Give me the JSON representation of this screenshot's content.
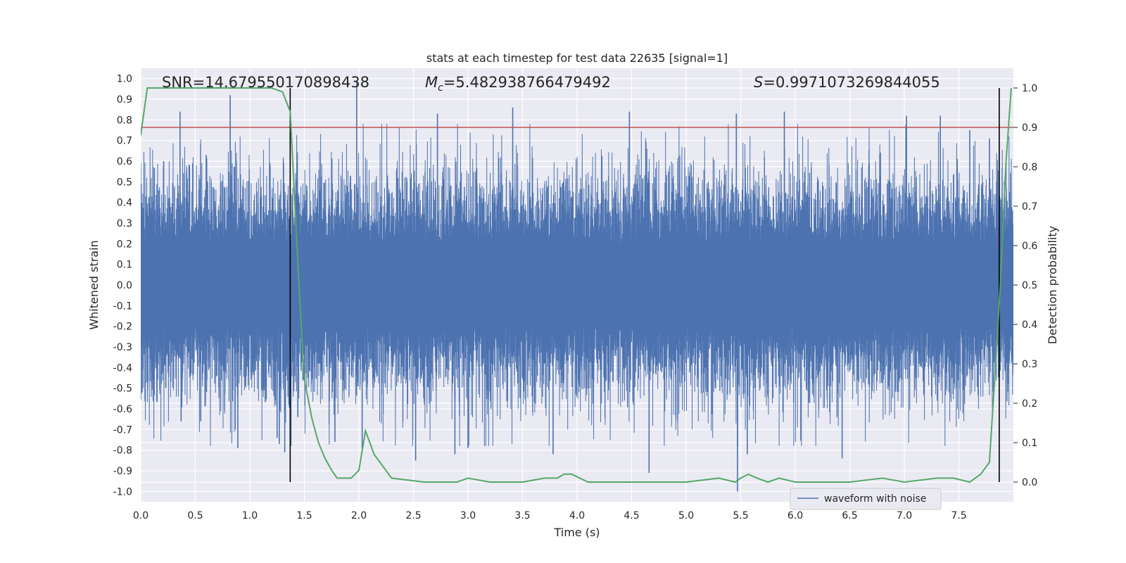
{
  "chart_data": {
    "type": "line",
    "title": "stats at each timestep for test data 22635 [signal=1]",
    "xlabel": "Time (s)",
    "ylabel_left": "Whitened strain",
    "ylabel_right": "Detection probability",
    "xlim": [
      0,
      8
    ],
    "ylim_left": [
      -1.05,
      1.05
    ],
    "ylim_right": [
      -0.05,
      1.05
    ],
    "x_ticks": [
      "0.0",
      "0.5",
      "1.0",
      "1.5",
      "2.0",
      "2.5",
      "3.0",
      "3.5",
      "4.0",
      "4.5",
      "5.0",
      "5.5",
      "6.0",
      "6.5",
      "7.0",
      "7.5"
    ],
    "y_left_ticks": [
      "-1.0",
      "-0.9",
      "-0.8",
      "-0.7",
      "-0.6",
      "-0.5",
      "-0.4",
      "-0.3",
      "-0.2",
      "-0.1",
      "0.0",
      "0.1",
      "0.2",
      "0.3",
      "0.4",
      "0.5",
      "0.6",
      "0.7",
      "0.8",
      "0.9",
      "1.0"
    ],
    "y_right_ticks": [
      "0.0",
      "0.1",
      "0.2",
      "0.3",
      "0.4",
      "0.5",
      "0.6",
      "0.7",
      "0.8",
      "0.9",
      "1.0"
    ],
    "grid": true,
    "annotations": {
      "snr": "SNR=14.679550170898438",
      "mc_symbol": "M",
      "mc_sub": "c",
      "mc_value": "=5.482938766479492",
      "s_symbol": "S",
      "s_value": "=0.9971073269844055"
    },
    "threshold": {
      "axis": "right",
      "value": 0.9,
      "color": "#c44e52"
    },
    "vlines_x": [
      1.37,
      7.87
    ],
    "legend": {
      "entries": [
        "waveform with noise"
      ],
      "placement": "lower-right"
    },
    "waveform": {
      "name": "waveform with noise",
      "color": "#4c72b0",
      "samples": 32768,
      "description_stats": {
        "core_amplitude": 0.2,
        "envelope": 0.4
      },
      "peaks": [
        {
          "x": 0.21,
          "y": 0.6
        },
        {
          "x": 0.23,
          "y": -0.5
        },
        {
          "x": 0.36,
          "y": 0.84
        },
        {
          "x": 0.37,
          "y": -0.66
        },
        {
          "x": 0.55,
          "y": -0.66
        },
        {
          "x": 0.6,
          "y": 0.63
        },
        {
          "x": 0.82,
          "y": 0.92
        },
        {
          "x": 0.89,
          "y": -0.79
        },
        {
          "x": 1.25,
          "y": -0.74
        },
        {
          "x": 1.27,
          "y": -0.77
        },
        {
          "x": 1.32,
          "y": -0.81
        },
        {
          "x": 1.44,
          "y": -0.64
        },
        {
          "x": 1.78,
          "y": -0.76
        },
        {
          "x": 1.98,
          "y": 0.99
        },
        {
          "x": 2.03,
          "y": -0.79
        },
        {
          "x": 2.52,
          "y": -0.85
        },
        {
          "x": 2.72,
          "y": 0.83
        },
        {
          "x": 2.88,
          "y": -0.82
        },
        {
          "x": 3.0,
          "y": -0.79
        },
        {
          "x": 3.41,
          "y": 0.86
        },
        {
          "x": 3.78,
          "y": -0.82
        },
        {
          "x": 4.48,
          "y": 0.84
        },
        {
          "x": 4.66,
          "y": -0.91
        },
        {
          "x": 5.46,
          "y": 0.83
        },
        {
          "x": 5.47,
          "y": -1.0
        },
        {
          "x": 5.56,
          "y": -0.82
        },
        {
          "x": 5.9,
          "y": 0.84
        },
        {
          "x": 6.43,
          "y": -0.84
        },
        {
          "x": 7.02,
          "y": 0.82
        },
        {
          "x": 7.33,
          "y": 0.82
        },
        {
          "x": 7.6,
          "y": 0.75
        },
        {
          "x": 7.78,
          "y": 0.71
        }
      ]
    },
    "probability": {
      "color": "#55a868",
      "x": [
        0.0,
        0.06,
        0.2,
        0.5,
        0.8,
        1.0,
        1.2,
        1.3,
        1.37,
        1.45,
        1.5,
        1.57,
        1.63,
        1.69,
        1.75,
        1.8,
        1.86,
        1.93,
        2.0,
        2.06,
        2.14,
        2.3,
        2.6,
        2.9,
        3.0,
        3.2,
        3.5,
        3.7,
        3.82,
        3.88,
        3.95,
        4.1,
        4.5,
        5.0,
        5.3,
        5.45,
        5.5,
        5.57,
        5.65,
        5.75,
        5.85,
        6.0,
        6.5,
        6.8,
        7.0,
        7.3,
        7.45,
        7.6,
        7.7,
        7.78,
        7.83,
        7.88,
        7.93,
        7.98
      ],
      "y": [
        0.88,
        1.0,
        1.0,
        1.0,
        1.0,
        1.0,
        1.0,
        0.99,
        0.94,
        0.5,
        0.26,
        0.16,
        0.1,
        0.06,
        0.03,
        0.01,
        0.01,
        0.01,
        0.03,
        0.13,
        0.07,
        0.01,
        0.0,
        0.0,
        0.01,
        0.0,
        0.0,
        0.01,
        0.01,
        0.02,
        0.02,
        0.0,
        0.0,
        0.0,
        0.01,
        0.0,
        0.01,
        0.02,
        0.01,
        0.0,
        0.01,
        0.0,
        0.0,
        0.01,
        0.0,
        0.01,
        0.01,
        0.0,
        0.02,
        0.05,
        0.27,
        0.5,
        0.8,
        1.0
      ]
    }
  }
}
